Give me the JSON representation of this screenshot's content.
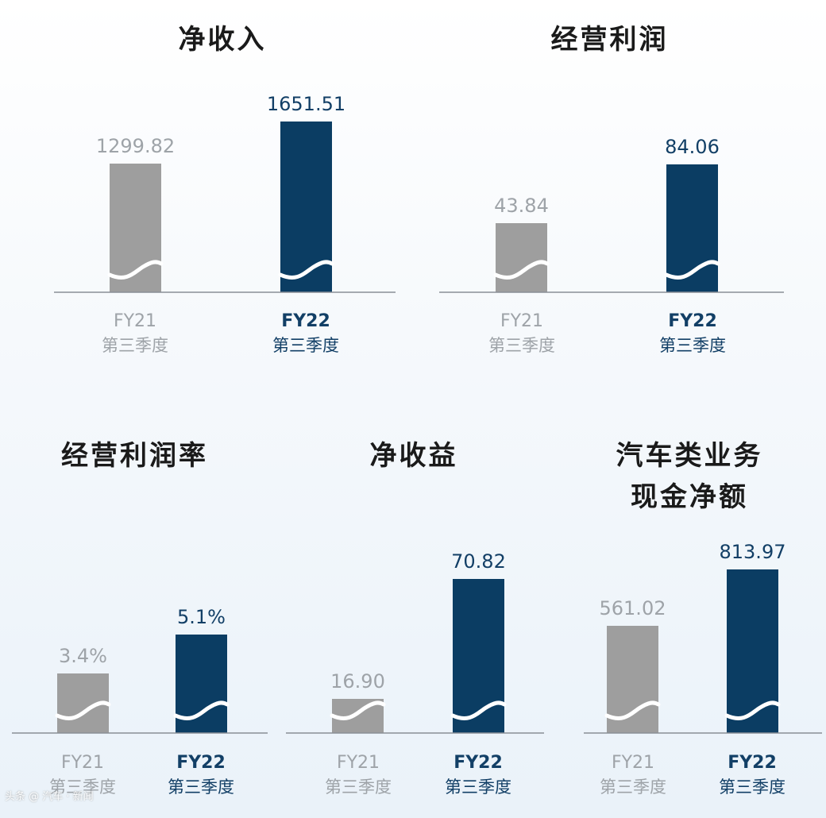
{
  "colors": {
    "prev": "#9e9e9e",
    "cur": "#0b3d63",
    "axis": "#8a8f96",
    "wave": "#ffffff",
    "prev_label": "#9ea3a8",
    "cur_label": "#123f66"
  },
  "chart_data": [
    {
      "type": "bar",
      "title": "净收入",
      "categories": [
        {
          "line1": "FY21",
          "line2": "第三季度"
        },
        {
          "line1": "FY22",
          "line2": "第三季度"
        }
      ],
      "values": [
        1299.82,
        1651.51
      ],
      "value_labels": [
        "1299.82",
        "1651.51"
      ]
    },
    {
      "type": "bar",
      "title": "经营利润",
      "categories": [
        {
          "line1": "FY21",
          "line2": "第三季度"
        },
        {
          "line1": "FY22",
          "line2": "第三季度"
        }
      ],
      "values": [
        43.84,
        84.06
      ],
      "value_labels": [
        "43.84",
        "84.06"
      ]
    },
    {
      "type": "bar",
      "title": "经营利润率",
      "categories": [
        {
          "line1": "FY21",
          "line2": "第三季度"
        },
        {
          "line1": "FY22",
          "line2": "第三季度"
        }
      ],
      "values": [
        3.4,
        5.1
      ],
      "value_labels": [
        "3.4%",
        "5.1%"
      ]
    },
    {
      "type": "bar",
      "title": "净收益",
      "categories": [
        {
          "line1": "FY21",
          "line2": "第三季度"
        },
        {
          "line1": "FY22",
          "line2": "第三季度"
        }
      ],
      "values": [
        16.9,
        70.82
      ],
      "value_labels": [
        "16.90",
        "70.82"
      ]
    },
    {
      "type": "bar",
      "title": "汽车类业务\n现金净额",
      "title_lines": [
        "汽车类业务",
        "现金净额"
      ],
      "categories": [
        {
          "line1": "FY21",
          "line2": "第三季度"
        },
        {
          "line1": "FY22",
          "line2": "第三季度"
        }
      ],
      "values": [
        561.02,
        813.97
      ],
      "value_labels": [
        "561.02",
        "813.97"
      ]
    }
  ],
  "watermark": "头条 @ 汽车 · 新闻"
}
